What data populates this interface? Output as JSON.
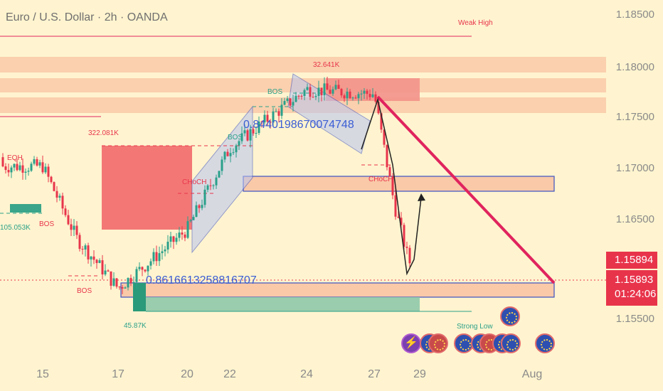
{
  "header": {
    "title": "Euro / U.S. Dollar · 2h · OANDA"
  },
  "axis": {
    "y_ticks": [
      "1.18500",
      "1.18000",
      "1.17500",
      "1.17000",
      "1.16500",
      "1.15500"
    ],
    "x_ticks": [
      "15",
      "17",
      "20",
      "22",
      "24",
      "27",
      "29",
      "Aug"
    ]
  },
  "price": {
    "last_a": "1.15894",
    "last_b": "1.15893",
    "countdown": "01:24:06"
  },
  "labels": {
    "weak_high": "Weak High",
    "strong_low": "Strong Low",
    "eqh": "EQH",
    "bos": "BOS",
    "choch": "CHoCH",
    "vol_32641": "32.641K",
    "vol_322081": "322.081K",
    "vol_105053": "105.053K",
    "vol_45870": "45.87K",
    "num_upper": "0.8440198670074748",
    "num_lower": "0.8616613258816707"
  },
  "colors": {
    "bg": "#fff4cf",
    "bull": "#2aa08a",
    "bear": "#e8344b",
    "trend": "#e0245e",
    "zone": "#f7c7a0"
  },
  "events": {
    "icons": [
      "flash-icon",
      "eu-flag-icon",
      "us-flag-icon",
      "eu-flag-icon",
      "eu-flag-icon",
      "us-flag-icon",
      "eu-flag-icon",
      "eu-flag-icon",
      "eu-flag-icon"
    ]
  },
  "chart_data": {
    "type": "candlestick",
    "symbol": "Euro / U.S. Dollar",
    "timeframe": "2h",
    "y_range": [
      1.1525,
      1.186
    ],
    "x_ticks": [
      "15",
      "17",
      "20",
      "22",
      "24",
      "27",
      "29",
      "Aug"
    ],
    "waypoints": [
      {
        "day": "15",
        "price": 1.1695
      },
      {
        "day": "16",
        "price": 1.1615
      },
      {
        "day": "17",
        "price": 1.156
      },
      {
        "day": "20",
        "price": 1.1625
      },
      {
        "day": "22",
        "price": 1.1715
      },
      {
        "day": "24",
        "price": 1.178
      },
      {
        "day": "27",
        "price": 1.1775
      },
      {
        "day": "28",
        "price": 1.165
      },
      {
        "day": "29",
        "price": 1.1589
      }
    ],
    "annotations": [
      "Weak High",
      "Strong Low",
      "EQH",
      "BOS",
      "CHoCH",
      "32.641K",
      "322.081K",
      "105.053K",
      "45.87K"
    ]
  }
}
